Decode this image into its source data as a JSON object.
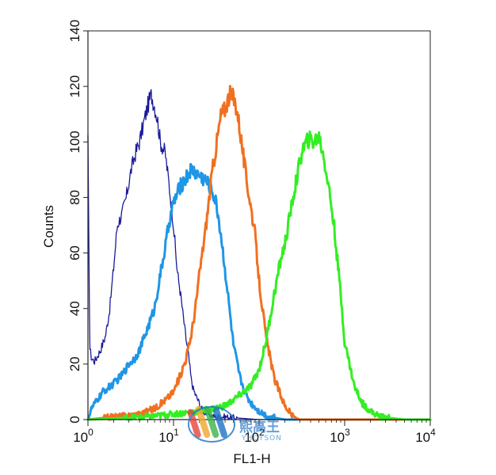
{
  "chart_data": {
    "type": "line",
    "xlabel": "FL1-H",
    "ylabel": "Counts",
    "xscale": "log",
    "xlim": [
      1,
      10000
    ],
    "ylim": [
      0,
      140
    ],
    "y_ticks": [
      0,
      20,
      40,
      60,
      80,
      100,
      120,
      140
    ],
    "x_ticks": [
      {
        "value": 1,
        "base": "10",
        "exp": "0"
      },
      {
        "value": 10,
        "base": "10",
        "exp": "1"
      },
      {
        "value": 100,
        "base": "10",
        "exp": "2"
      },
      {
        "value": 1000,
        "base": "10",
        "exp": "3"
      },
      {
        "value": 10000,
        "base": "10",
        "exp": "4"
      }
    ],
    "grid": false,
    "legend": "none",
    "series": [
      {
        "color": "#1a1a9a",
        "x": [
          1,
          1.05,
          1.1,
          1.2,
          1.4,
          1.6,
          1.8,
          2.0,
          2.2,
          2.5,
          2.8,
          3.2,
          3.6,
          4.0,
          4.5,
          5.0,
          5.5,
          6.0,
          6.5,
          7.0,
          8.0,
          9.0,
          10,
          11,
          12,
          13,
          14,
          15,
          16,
          17,
          18,
          20,
          22,
          25,
          30,
          40,
          60,
          100,
          10000
        ],
        "y": [
          100,
          26,
          22,
          21,
          25,
          30,
          40,
          55,
          70,
          74,
          80,
          90,
          96,
          100,
          107,
          113,
          117,
          113,
          108,
          100,
          96,
          83,
          70,
          54,
          46,
          37,
          29,
          23,
          15,
          11,
          9,
          6,
          3,
          2,
          1,
          1,
          0.5,
          0,
          0
        ]
      },
      {
        "color": "#1f96e6",
        "x": [
          1,
          1.1,
          1.5,
          2.0,
          2.5,
          3.0,
          3.5,
          4.0,
          5.0,
          6.0,
          7.0,
          8.0,
          9.0,
          10,
          12,
          14,
          16,
          18,
          20,
          24,
          28,
          32,
          36,
          40,
          45,
          50,
          60,
          70,
          80,
          100,
          130,
          200,
          10000
        ],
        "y": [
          0,
          4,
          10,
          13,
          16,
          20,
          22,
          25,
          33,
          40,
          52,
          62,
          72,
          78,
          84,
          87,
          90,
          89,
          88,
          86,
          83,
          77,
          66,
          54,
          40,
          27,
          15,
          9,
          6,
          3,
          1,
          0,
          0
        ]
      },
      {
        "color": "#f07020",
        "x": [
          1,
          2,
          4,
          6,
          8,
          10,
          12,
          14,
          16,
          18,
          20,
          24,
          28,
          32,
          36,
          40,
          45,
          50,
          55,
          60,
          70,
          80,
          90,
          100,
          120,
          150,
          200,
          250,
          300,
          10000
        ],
        "y": [
          0,
          1,
          2,
          4,
          7,
          10,
          16,
          22,
          30,
          40,
          52,
          70,
          88,
          100,
          110,
          112,
          117,
          116,
          112,
          104,
          88,
          77,
          66,
          50,
          30,
          15,
          5,
          1,
          0,
          0
        ]
      },
      {
        "color": "#33ee22",
        "x": [
          1,
          5,
          10,
          20,
          30,
          40,
          50,
          60,
          80,
          100,
          120,
          150,
          180,
          200,
          240,
          280,
          320,
          380,
          440,
          500,
          560,
          650,
          750,
          900,
          1000,
          1300,
          1600,
          2000,
          2600,
          3500,
          5000,
          10000
        ],
        "y": [
          0,
          1,
          2,
          3,
          4,
          5,
          7,
          9,
          12,
          18,
          28,
          45,
          58,
          63,
          77,
          88,
          97,
          101,
          100,
          102,
          96,
          84,
          70,
          45,
          28,
          12,
          6,
          3,
          1,
          0.5,
          0,
          0
        ]
      }
    ]
  },
  "watermark": {
    "text": "熙高王",
    "subtext": "YHOYSON",
    "colors": [
      "#e8443a",
      "#f2a62b",
      "#3bb54a",
      "#1e73c8"
    ]
  }
}
